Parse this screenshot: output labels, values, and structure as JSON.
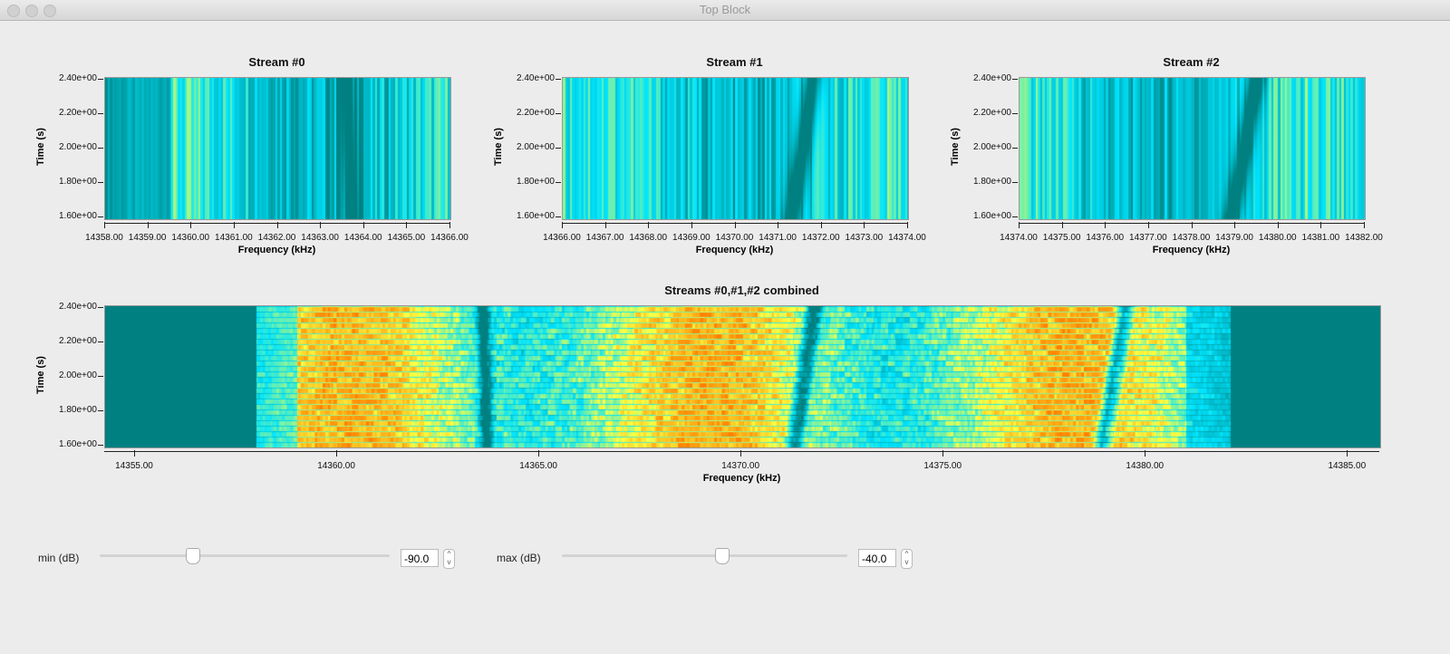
{
  "window": {
    "title": "Top Block"
  },
  "chart_data": [
    {
      "type": "heatmap",
      "title": "Stream #0",
      "xlabel": "Frequency (kHz)",
      "ylabel": "Time (s)",
      "xlim": [
        14358,
        14366
      ],
      "ylim": [
        1.59,
        2.41
      ],
      "xticks": [
        "14358.00",
        "14359.00",
        "14360.00",
        "14361.00",
        "14362.00",
        "14363.00",
        "14364.00",
        "14365.00",
        "14366.00"
      ],
      "yticks": [
        "1.60e+00",
        "1.80e+00",
        "2.00e+00",
        "2.20e+00",
        "2.40e+00"
      ]
    },
    {
      "type": "heatmap",
      "title": "Stream #1",
      "xlabel": "Frequency (kHz)",
      "ylabel": "Time (s)",
      "xlim": [
        14366,
        14374
      ],
      "ylim": [
        1.59,
        2.41
      ],
      "xticks": [
        "14366.00",
        "14367.00",
        "14368.00",
        "14369.00",
        "14370.00",
        "14371.00",
        "14372.00",
        "14373.00",
        "14374.00"
      ],
      "yticks": [
        "1.60e+00",
        "1.80e+00",
        "2.00e+00",
        "2.20e+00",
        "2.40e+00"
      ]
    },
    {
      "type": "heatmap",
      "title": "Stream #2",
      "xlabel": "Frequency (kHz)",
      "ylabel": "Time (s)",
      "xlim": [
        14374,
        14382
      ],
      "ylim": [
        1.59,
        2.41
      ],
      "xticks": [
        "14374.00",
        "14375.00",
        "14376.00",
        "14377.00",
        "14378.00",
        "14379.00",
        "14380.00",
        "14381.00",
        "14382.00"
      ],
      "yticks": [
        "1.60e+00",
        "1.80e+00",
        "2.00e+00",
        "2.20e+00",
        "2.40e+00"
      ]
    },
    {
      "type": "heatmap",
      "title": "Streams #0,#1,#2 combined",
      "xlabel": "Frequency (kHz)",
      "ylabel": "Time (s)",
      "xlim": [
        14354.26,
        14385.8
      ],
      "ylim": [
        1.59,
        2.41
      ],
      "xticks": [
        "14355.00",
        "14360.00",
        "14365.00",
        "14370.00",
        "14375.00",
        "14380.00",
        "14385.00"
      ],
      "yticks": [
        "1.60e+00",
        "1.80e+00",
        "2.00e+00",
        "2.20e+00",
        "2.40e+00"
      ],
      "signal_band": [
        14358,
        14382
      ]
    }
  ],
  "colors": {
    "background_level": "#008080",
    "colormap": [
      "#008080",
      "#00e5ff",
      "#ffff40",
      "#ff8000"
    ]
  },
  "controls": {
    "min": {
      "label": "min (dB)",
      "value": "-90.0",
      "slider_fraction": 0.32
    },
    "max": {
      "label": "max (dB)",
      "value": "-40.0",
      "slider_fraction": 0.56
    }
  }
}
